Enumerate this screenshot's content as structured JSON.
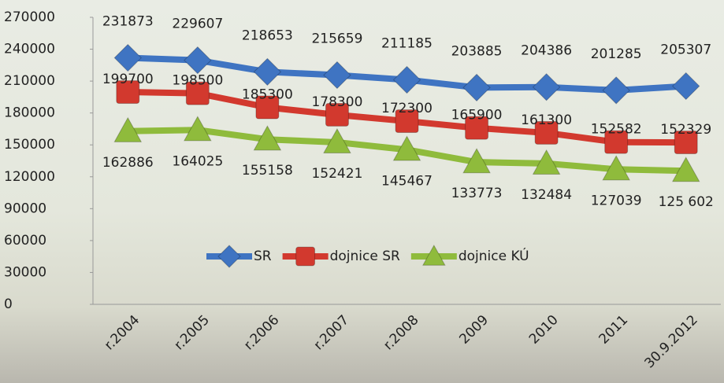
{
  "chart_data": {
    "type": "line",
    "categories": [
      "r.2004",
      "r.2005",
      "r.2006",
      "r.2007",
      "r.2008",
      "2009",
      "2010",
      "2011",
      "30.9.2012"
    ],
    "series": [
      {
        "name": "SR",
        "color": "#3f74c2",
        "marker": "diamond",
        "values": [
          231873,
          229607,
          218653,
          215659,
          211185,
          203885,
          204386,
          201285,
          205307
        ]
      },
      {
        "name": "dojnice SR",
        "color": "#d2392e",
        "marker": "square",
        "values": [
          199700,
          198500,
          185300,
          178300,
          172300,
          165900,
          161300,
          152582,
          152329
        ]
      },
      {
        "name": "dojnice KÚ",
        "color": "#8fbb3c",
        "marker": "triangle",
        "values": [
          162886,
          164025,
          155158,
          152421,
          145467,
          133773,
          132484,
          127039,
          125602
        ],
        "value_labels": [
          "162886",
          "164025",
          "155158",
          "152421",
          "145467",
          "133773",
          "132484",
          "127039",
          "125 602"
        ]
      }
    ],
    "ylim": [
      0,
      270000
    ],
    "yticks": [
      0,
      30000,
      60000,
      90000,
      120000,
      150000,
      180000,
      210000,
      240000,
      270000
    ],
    "legend": "center"
  }
}
